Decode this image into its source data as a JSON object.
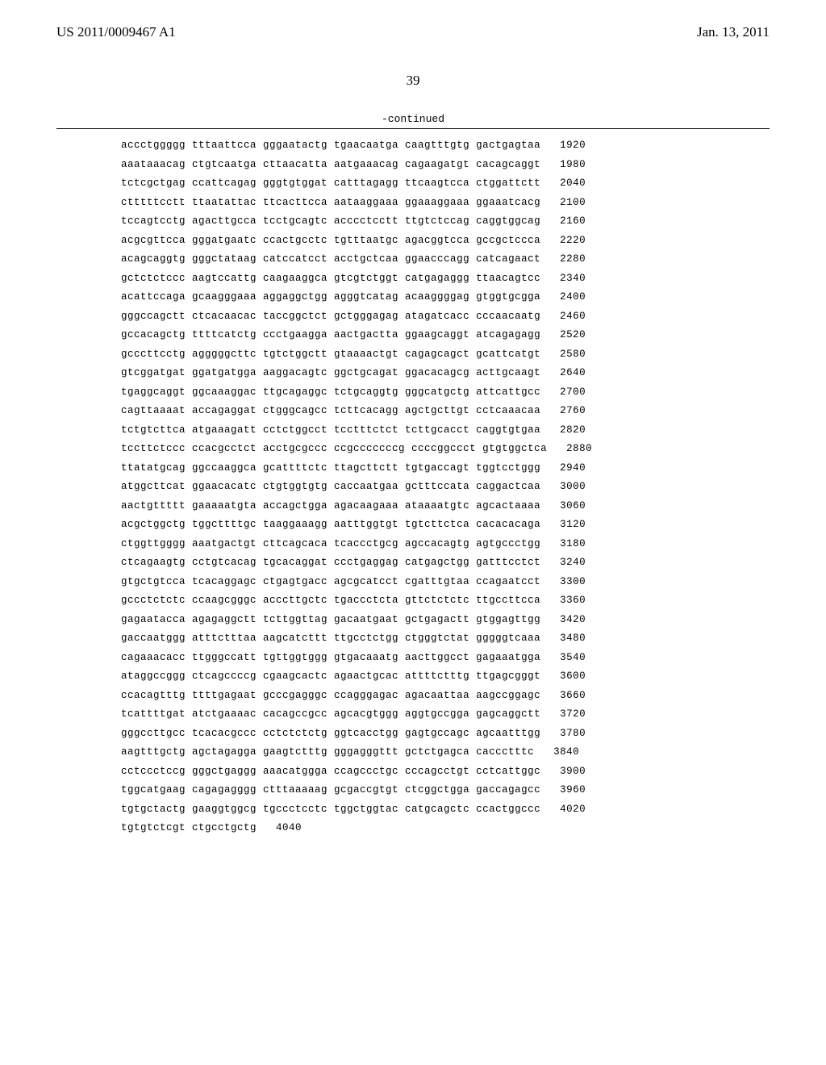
{
  "header": {
    "left": "US 2011/0009467 A1",
    "right": "Jan. 13, 2011"
  },
  "page_number": "39",
  "continued_label": "-continued",
  "sequence": {
    "font_family": "Courier New",
    "font_size_pt": 9,
    "color": "#000000",
    "background_color": "#ffffff",
    "group_gap_spaces": 1,
    "num_gap_spaces": 4,
    "rows": [
      {
        "groups": [
          "accctggggg",
          "tttaattcca",
          "gggaatactg",
          "tgaacaatga",
          "caagtttgtg",
          "gactgagtaa"
        ],
        "num": "1920"
      },
      {
        "groups": [
          "aaataaacag",
          "ctgtcaatga",
          "cttaacatta",
          "aatgaaacag",
          "cagaagatgt",
          "cacagcaggt"
        ],
        "num": "1980"
      },
      {
        "groups": [
          "tctcgctgag",
          "ccattcagag",
          "gggtgtggat",
          "catttagagg",
          "ttcaagtcca",
          "ctggattctt"
        ],
        "num": "2040"
      },
      {
        "groups": [
          "ctttttcctt",
          "ttaatattac",
          "ttcacttcca",
          "aataaggaaa",
          "ggaaaggaaa",
          "ggaaatcacg"
        ],
        "num": "2100"
      },
      {
        "groups": [
          "tccagtcctg",
          "agacttgcca",
          "tcctgcagtc",
          "acccctcctt",
          "ttgtctccag",
          "caggtggcag"
        ],
        "num": "2160"
      },
      {
        "groups": [
          "acgcgttcca",
          "gggatgaatc",
          "ccactgcctc",
          "tgtttaatgc",
          "agacggtcca",
          "gccgctccca"
        ],
        "num": "2220"
      },
      {
        "groups": [
          "acagcaggtg",
          "gggctataag",
          "catccatcct",
          "acctgctcaa",
          "ggaacccagg",
          "catcagaact"
        ],
        "num": "2280"
      },
      {
        "groups": [
          "gctctctccc",
          "aagtccattg",
          "caagaaggca",
          "gtcgtctggt",
          "catgagaggg",
          "ttaacagtcc"
        ],
        "num": "2340"
      },
      {
        "groups": [
          "acattccaga",
          "gcaagggaaa",
          "aggaggctgg",
          "agggtcatag",
          "acaaggggag",
          "gtggtgcgga"
        ],
        "num": "2400"
      },
      {
        "groups": [
          "gggccagctt",
          "ctcacaacac",
          "taccggctct",
          "gctgggagag",
          "atagatcacc",
          "cccaacaatg"
        ],
        "num": "2460"
      },
      {
        "groups": [
          "gccacagctg",
          "ttttcatctg",
          "ccctgaagga",
          "aactgactta",
          "ggaagcaggt",
          "atcagagagg"
        ],
        "num": "2520"
      },
      {
        "groups": [
          "gcccttcctg",
          "agggggcttc",
          "tgtctggctt",
          "gtaaaactgt",
          "cagagcagct",
          "gcattcatgt"
        ],
        "num": "2580"
      },
      {
        "groups": [
          "gtcggatgat",
          "ggatgatgga",
          "aaggacagtc",
          "ggctgcagat",
          "ggacacagcg",
          "acttgcaagt"
        ],
        "num": "2640"
      },
      {
        "groups": [
          "tgaggcaggt",
          "ggcaaaggac",
          "ttgcagaggc",
          "tctgcaggtg",
          "gggcatgctg",
          "attcattgcc"
        ],
        "num": "2700"
      },
      {
        "groups": [
          "cagttaaaat",
          "accagaggat",
          "ctgggcagcc",
          "tcttcacagg",
          "agctgcttgt",
          "cctcaaacaa"
        ],
        "num": "2760"
      },
      {
        "groups": [
          "tctgtcttca",
          "atgaaagatt",
          "cctctggcct",
          "tcctttctct",
          "tcttgcacct",
          "caggtgtgaa"
        ],
        "num": "2820"
      },
      {
        "groups": [
          "tccttctccc",
          "ccacgcctct",
          "acctgcgccc",
          "ccgcccccccg",
          "ccccggccct",
          "gtgtggctca"
        ],
        "num": "2880"
      },
      {
        "groups": [
          "ttatatgcag",
          "ggccaaggca",
          "gcattttctc",
          "ttagcttctt",
          "tgtgaccagt",
          "tggtcctggg"
        ],
        "num": "2940"
      },
      {
        "groups": [
          "atggcttcat",
          "ggaacacatc",
          "ctgtggtgtg",
          "caccaatgaa",
          "gctttccata",
          "caggactcaa"
        ],
        "num": "3000"
      },
      {
        "groups": [
          "aactgttttt",
          "gaaaaatgta",
          "accagctgga",
          "agacaagaaa",
          "ataaaatgtc",
          "agcactaaaa"
        ],
        "num": "3060"
      },
      {
        "groups": [
          "acgctggctg",
          "tggcttttgc",
          "taaggaaagg",
          "aatttggtgt",
          "tgtcttctca",
          "cacacacaga"
        ],
        "num": "3120"
      },
      {
        "groups": [
          "ctggttgggg",
          "aaatgactgt",
          "cttcagcaca",
          "tcaccctgcg",
          "agccacagtg",
          "agtgccctgg"
        ],
        "num": "3180"
      },
      {
        "groups": [
          "ctcagaagtg",
          "cctgtcacag",
          "tgcacaggat",
          "ccctgaggag",
          "catgagctgg",
          "gatttcctct"
        ],
        "num": "3240"
      },
      {
        "groups": [
          "gtgctgtcca",
          "tcacaggagc",
          "ctgagtgacc",
          "agcgcatcct",
          "cgatttgtaa",
          "ccagaatcct"
        ],
        "num": "3300"
      },
      {
        "groups": [
          "gccctctctc",
          "ccaagcgggc",
          "acccttgctc",
          "tgaccctcta",
          "gttctctctc",
          "ttgccttcca"
        ],
        "num": "3360"
      },
      {
        "groups": [
          "gagaatacca",
          "agagaggctt",
          "tcttggttag",
          "gacaatgaat",
          "gctgagactt",
          "gtggagttgg"
        ],
        "num": "3420"
      },
      {
        "groups": [
          "gaccaatggg",
          "atttctttaa",
          "aagcatcttt",
          "ttgcctctgg",
          "ctgggtctat",
          "gggggtcaaa"
        ],
        "num": "3480"
      },
      {
        "groups": [
          "cagaaacacc",
          "ttgggccatt",
          "tgttggtggg",
          "gtgacaaatg",
          "aacttggcct",
          "gagaaatgga"
        ],
        "num": "3540"
      },
      {
        "groups": [
          "ataggccggg",
          "ctcagccccg",
          "cgaagcactc",
          "agaactgcac",
          "attttctttg",
          "ttgagcgggt"
        ],
        "num": "3600"
      },
      {
        "groups": [
          "ccacagtttg",
          "ttttgagaat",
          "gcccgagggc",
          "ccagggagac",
          "agacaattaa",
          "aagccggagc"
        ],
        "num": "3660"
      },
      {
        "groups": [
          "tcattttgat",
          "atctgaaaac",
          "cacagccgcc",
          "agcacgtggg",
          "aggtgccgga",
          "gagcaggctt"
        ],
        "num": "3720"
      },
      {
        "groups": [
          "gggccttgcc",
          "tcacacgccc",
          "cctctctctg",
          "ggtcacctgg",
          "gagtgccagc",
          "agcaatttgg"
        ],
        "num": "3780"
      },
      {
        "groups": [
          "aagtttgctg",
          "agctagagga",
          "gaagtctttg",
          "gggagggttt",
          "gctctgagca",
          "caccctttc"
        ],
        "num": "3840"
      },
      {
        "groups": [
          "cctccctccg",
          "gggctgaggg",
          "aaacatggga",
          "ccagccctgc",
          "cccagcctgt",
          "cctcattggc"
        ],
        "num": "3900"
      },
      {
        "groups": [
          "tggcatgaag",
          "cagagagggg",
          "ctttaaaaag",
          "gcgaccgtgt",
          "ctcggctgga",
          "gaccagagcc"
        ],
        "num": "3960"
      },
      {
        "groups": [
          "tgtgctactg",
          "gaaggtggcg",
          "tgccctcctc",
          "tggctggtac",
          "catgcagctc",
          "ccactggccc"
        ],
        "num": "4020"
      },
      {
        "groups": [
          "tgtgtctcgt",
          "ctgcctgctg"
        ],
        "num": "4040"
      }
    ]
  }
}
